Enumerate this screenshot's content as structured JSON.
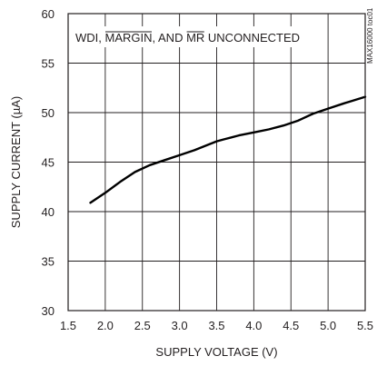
{
  "chart_data": {
    "type": "line",
    "xlabel": "SUPPLY VOLTAGE (V)",
    "ylabel": "SUPPLY CURRENT (µA)",
    "xlim": [
      1.5,
      5.5
    ],
    "ylim": [
      30,
      60
    ],
    "x_ticks": [
      1.5,
      2.0,
      2.5,
      3.0,
      3.5,
      4.0,
      4.5,
      5.0,
      5.5
    ],
    "x_tick_labels": [
      "1.5",
      "2.0",
      "2.5",
      "3.0",
      "3.5",
      "4.0",
      "4.5",
      "5.0",
      "5.5"
    ],
    "y_ticks": [
      30,
      35,
      40,
      45,
      50,
      55,
      60
    ],
    "y_tick_labels": [
      "30",
      "35",
      "40",
      "45",
      "50",
      "55",
      "60"
    ],
    "grid": true,
    "annotation": {
      "parts": [
        {
          "text": "WDI, ",
          "overline": false
        },
        {
          "text": "MARGIN",
          "overline": true
        },
        {
          "text": ", AND ",
          "overline": false
        },
        {
          "text": "MR",
          "overline": true
        },
        {
          "text": " UNCONNECTED",
          "overline": false
        }
      ]
    },
    "side_note": "MAX16000 toc01",
    "series": [
      {
        "color": "#000000",
        "x": [
          1.8,
          2.0,
          2.2,
          2.4,
          2.6,
          2.8,
          3.0,
          3.2,
          3.4,
          3.5,
          3.6,
          3.8,
          4.0,
          4.2,
          4.4,
          4.6,
          4.8,
          5.0,
          5.2,
          5.5
        ],
        "y": [
          40.9,
          41.9,
          43.0,
          44.0,
          44.7,
          45.2,
          45.7,
          46.2,
          46.8,
          47.1,
          47.3,
          47.7,
          48.0,
          48.3,
          48.7,
          49.2,
          49.9,
          50.4,
          50.9,
          51.6
        ]
      }
    ]
  }
}
